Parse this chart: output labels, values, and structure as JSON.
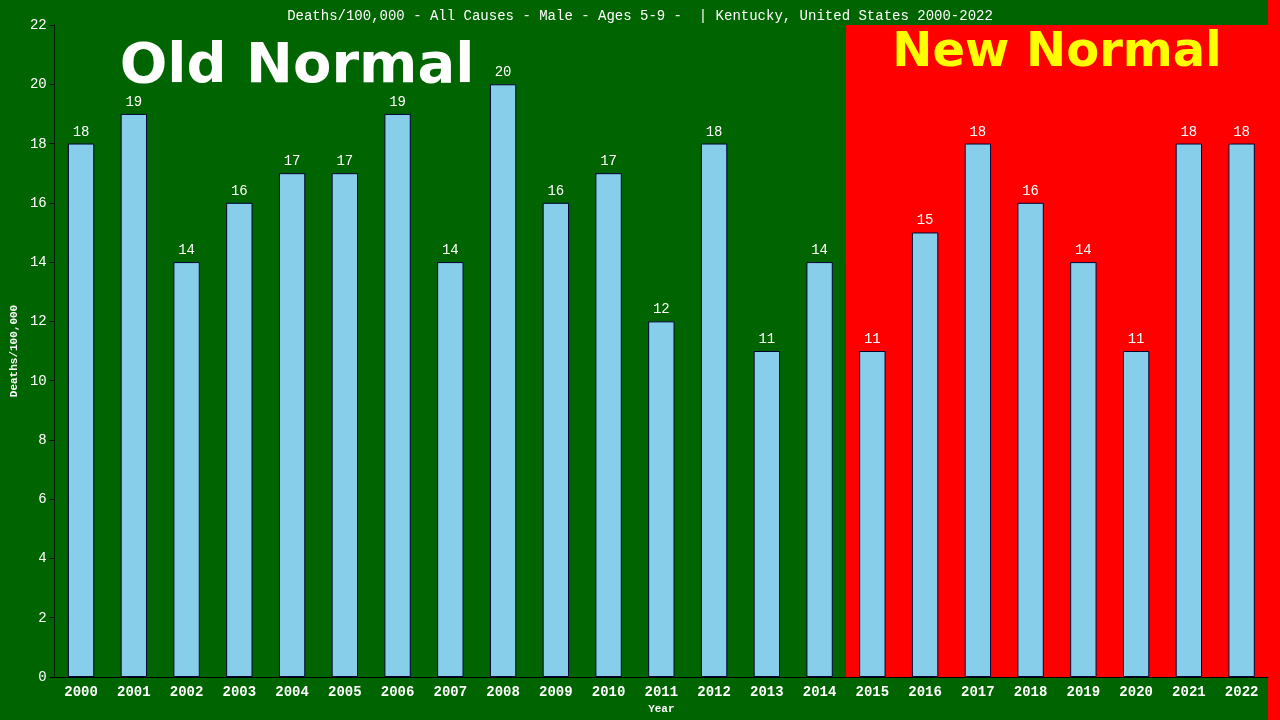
{
  "chart_data": {
    "type": "bar",
    "title": "Deaths/100,000 - All Causes - Male - Ages 5-9 -  | Kentucky, United States 2000-2022",
    "xlabel": "Year",
    "ylabel": "Deaths/100,000",
    "categories": [
      "2000",
      "2001",
      "2002",
      "2003",
      "2004",
      "2005",
      "2006",
      "2007",
      "2008",
      "2009",
      "2010",
      "2011",
      "2012",
      "2013",
      "2014",
      "2015",
      "2016",
      "2017",
      "2018",
      "2019",
      "2020",
      "2021",
      "2022"
    ],
    "values": [
      18,
      19,
      14,
      16,
      17,
      17,
      19,
      14,
      20,
      16,
      17,
      12,
      18,
      11,
      14,
      11,
      15,
      18,
      16,
      14,
      11,
      18,
      18
    ],
    "color": "#87ceeb",
    "data_labels": true,
    "ylim": [
      0,
      22
    ],
    "yticks": [
      0,
      2,
      4,
      6,
      8,
      10,
      12,
      14,
      16,
      18,
      20,
      22
    ],
    "grid": false,
    "bands": [
      {
        "axis": "x",
        "from": "2000",
        "to": "2014",
        "label": "Old Normal",
        "color": "#006400"
      },
      {
        "axis": "x",
        "from": "2015",
        "to": "2022",
        "label": "New Normal",
        "color": "#ff0000"
      }
    ]
  }
}
